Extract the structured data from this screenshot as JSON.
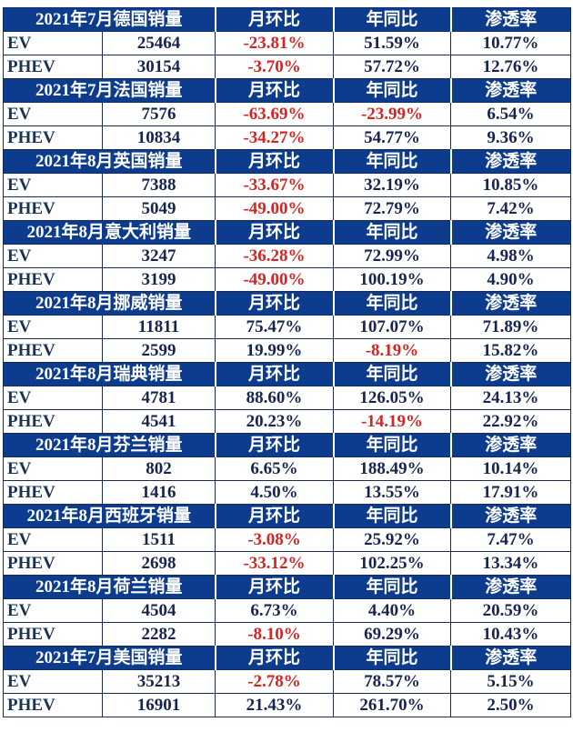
{
  "colors": {
    "header_bg": "#0d3c8e",
    "header_text": "#ffffff",
    "text": "#16244f",
    "negative": "#d42424"
  },
  "columns": [
    "月环比",
    "年同比",
    "渗透率"
  ],
  "sections": [
    {
      "title": "2021年7月德国销量",
      "rows": [
        [
          "EV",
          "25464",
          "-23.81%",
          "51.59%",
          "10.77%"
        ],
        [
          "PHEV",
          "30154",
          "-3.70%",
          "57.72%",
          "12.76%"
        ]
      ]
    },
    {
      "title": "2021年7月法国销量",
      "rows": [
        [
          "EV",
          "7576",
          "-63.69%",
          "-23.99%",
          "6.54%"
        ],
        [
          "PHEV",
          "10834",
          "-34.27%",
          "54.77%",
          "9.36%"
        ]
      ]
    },
    {
      "title": "2021年8月英国销量",
      "rows": [
        [
          "EV",
          "7388",
          "-33.67%",
          "32.19%",
          "10.85%"
        ],
        [
          "PHEV",
          "5049",
          "-49.00%",
          "72.79%",
          "7.42%"
        ]
      ]
    },
    {
      "title": "2021年8月意大利销量",
      "rows": [
        [
          "EV",
          "3247",
          "-36.28%",
          "72.99%",
          "4.98%"
        ],
        [
          "PHEV",
          "3199",
          "-49.00%",
          "100.19%",
          "4.90%"
        ]
      ]
    },
    {
      "title": "2021年8月挪威销量",
      "rows": [
        [
          "EV",
          "11811",
          "75.47%",
          "107.07%",
          "71.89%"
        ],
        [
          "PHEV",
          "2599",
          "19.99%",
          "-8.19%",
          "15.82%"
        ]
      ]
    },
    {
      "title": "2021年8月瑞典销量",
      "rows": [
        [
          "EV",
          "4781",
          "88.60%",
          "126.05%",
          "24.13%"
        ],
        [
          "PHEV",
          "4541",
          "20.23%",
          "-14.19%",
          "22.92%"
        ]
      ]
    },
    {
      "title": "2021年8月芬兰销量",
      "rows": [
        [
          "EV",
          "802",
          "6.65%",
          "188.49%",
          "10.14%"
        ],
        [
          "PHEV",
          "1416",
          "4.50%",
          "13.55%",
          "17.91%"
        ]
      ]
    },
    {
      "title": "2021年8月西班牙销量",
      "rows": [
        [
          "EV",
          "1511",
          "-3.08%",
          "25.92%",
          "7.47%"
        ],
        [
          "PHEV",
          "2698",
          "-33.12%",
          "102.25%",
          "13.34%"
        ]
      ]
    },
    {
      "title": "2021年8月荷兰销量",
      "rows": [
        [
          "EV",
          "4504",
          "6.73%",
          "4.40%",
          "20.59%"
        ],
        [
          "PHEV",
          "2282",
          "-8.10%",
          "69.29%",
          "10.43%"
        ]
      ]
    },
    {
      "title": "2021年7月美国销量",
      "rows": [
        [
          "EV",
          "35213",
          "-2.78%",
          "78.57%",
          "5.15%"
        ],
        [
          "PHEV",
          "16901",
          "21.43%",
          "261.70%",
          "2.50%"
        ]
      ]
    }
  ]
}
